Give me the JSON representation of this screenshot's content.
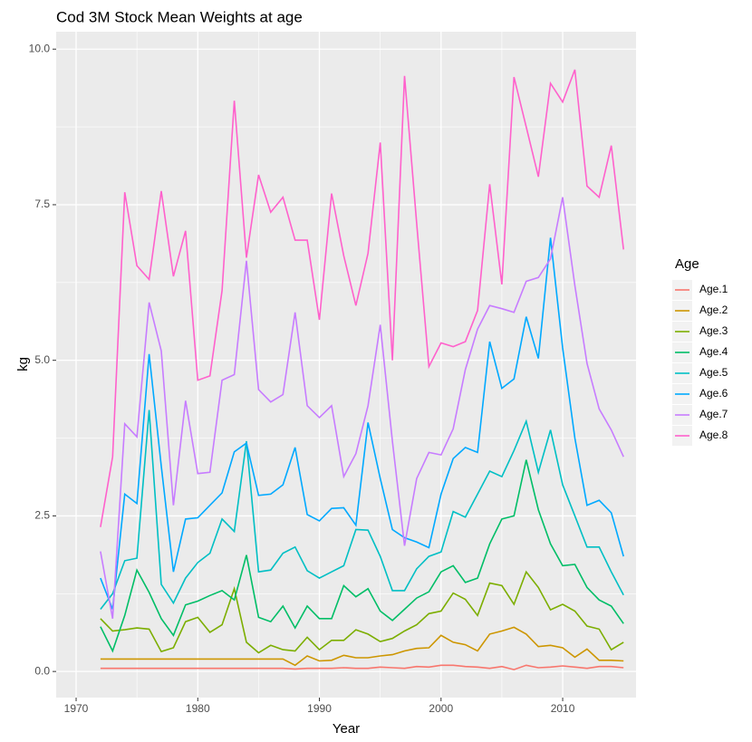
{
  "chart_data": {
    "type": "line",
    "title": "Cod 3M Stock Mean Weights at age",
    "x_label": "Year",
    "y_label": "kg",
    "legend_title": "Age",
    "legend_position": "right",
    "grid": true,
    "x": [
      1972,
      1973,
      1974,
      1975,
      1976,
      1977,
      1978,
      1979,
      1980,
      1981,
      1982,
      1983,
      1984,
      1985,
      1986,
      1987,
      1988,
      1989,
      1990,
      1991,
      1992,
      1993,
      1994,
      1995,
      1996,
      1997,
      1998,
      1999,
      2000,
      2001,
      2002,
      2003,
      2004,
      2005,
      2006,
      2007,
      2008,
      2009,
      2010,
      2011,
      2012,
      2013,
      2014,
      2015
    ],
    "xlim": [
      1968.36,
      2016.03
    ],
    "xticks": [
      1970,
      1980,
      1990,
      2000,
      2010
    ],
    "ylim": [
      -0.42,
      10.28
    ],
    "yticks": [
      {
        "value": 0,
        "label": "0.0"
      },
      2.5,
      {
        "value": 5,
        "label": "5.0"
      },
      7.5,
      {
        "value": 10,
        "label": "10.0"
      }
    ],
    "series": [
      {
        "name": "Age.1",
        "color": "#F8766D",
        "values": [
          0.05,
          0.05,
          0.05,
          0.05,
          0.05,
          0.05,
          0.05,
          0.05,
          0.05,
          0.05,
          0.05,
          0.05,
          0.05,
          0.05,
          0.05,
          0.05,
          0.04,
          0.05,
          0.05,
          0.05,
          0.06,
          0.05,
          0.05,
          0.07,
          0.06,
          0.05,
          0.08,
          0.07,
          0.1,
          0.1,
          0.08,
          0.07,
          0.05,
          0.08,
          0.03,
          0.1,
          0.06,
          0.07,
          0.09,
          0.07,
          0.05,
          0.08,
          0.08,
          0.06
        ]
      },
      {
        "name": "Age.2",
        "color": "#CD9600",
        "values": [
          0.2,
          0.2,
          0.2,
          0.2,
          0.2,
          0.2,
          0.2,
          0.2,
          0.2,
          0.2,
          0.2,
          0.2,
          0.2,
          0.2,
          0.2,
          0.2,
          0.1,
          0.25,
          0.17,
          0.18,
          0.26,
          0.22,
          0.22,
          0.25,
          0.27,
          0.33,
          0.37,
          0.38,
          0.58,
          0.47,
          0.43,
          0.33,
          0.6,
          0.65,
          0.71,
          0.6,
          0.4,
          0.42,
          0.38,
          0.23,
          0.36,
          0.18,
          0.18,
          0.17
        ]
      },
      {
        "name": "Age.3",
        "color": "#7CAE00",
        "values": [
          0.85,
          0.65,
          0.67,
          0.7,
          0.68,
          0.32,
          0.38,
          0.8,
          0.87,
          0.63,
          0.75,
          1.33,
          0.47,
          0.3,
          0.42,
          0.35,
          0.33,
          0.55,
          0.35,
          0.5,
          0.5,
          0.67,
          0.6,
          0.48,
          0.53,
          0.65,
          0.75,
          0.93,
          0.97,
          1.26,
          1.16,
          0.9,
          1.42,
          1.38,
          1.08,
          1.6,
          1.35,
          0.99,
          1.08,
          0.97,
          0.73,
          0.68,
          0.35,
          0.47
        ]
      },
      {
        "name": "Age.4",
        "color": "#00BE67",
        "values": [
          0.72,
          0.33,
          0.9,
          1.63,
          1.27,
          0.85,
          0.58,
          1.07,
          1.13,
          1.22,
          1.3,
          1.15,
          1.87,
          0.87,
          0.8,
          1.05,
          0.7,
          1.05,
          0.85,
          0.85,
          1.38,
          1.2,
          1.33,
          0.97,
          0.82,
          1.0,
          1.18,
          1.28,
          1.6,
          1.7,
          1.43,
          1.5,
          2.05,
          2.45,
          2.5,
          3.4,
          2.6,
          2.05,
          1.7,
          1.72,
          1.35,
          1.15,
          1.05,
          0.77
        ]
      },
      {
        "name": "Age.5",
        "color": "#00BFC4",
        "values": [
          1.0,
          1.25,
          1.78,
          1.82,
          4.2,
          1.4,
          1.1,
          1.5,
          1.75,
          1.9,
          2.45,
          2.25,
          3.7,
          1.6,
          1.63,
          1.9,
          2.0,
          1.62,
          1.5,
          1.6,
          1.7,
          2.28,
          2.27,
          1.85,
          1.3,
          1.3,
          1.65,
          1.85,
          1.92,
          2.57,
          2.48,
          2.85,
          3.22,
          3.13,
          3.55,
          4.02,
          3.2,
          3.88,
          3.0,
          2.5,
          2.0,
          2.0,
          1.6,
          1.23
        ]
      },
      {
        "name": "Age.6",
        "color": "#00A9FF",
        "values": [
          1.5,
          1.0,
          2.85,
          2.7,
          5.1,
          3.3,
          1.6,
          2.45,
          2.47,
          2.67,
          2.87,
          3.53,
          3.67,
          2.83,
          2.85,
          3.0,
          3.6,
          2.52,
          2.42,
          2.62,
          2.63,
          2.35,
          4.0,
          3.1,
          2.28,
          2.15,
          2.08,
          1.99,
          2.85,
          3.42,
          3.6,
          3.52,
          5.3,
          4.55,
          4.7,
          5.7,
          5.03,
          6.97,
          5.2,
          3.75,
          2.67,
          2.75,
          2.55,
          1.85
        ]
      },
      {
        "name": "Age.7",
        "color": "#C77CFF",
        "values": [
          1.93,
          0.85,
          3.98,
          3.77,
          5.93,
          5.15,
          2.67,
          4.35,
          3.18,
          3.2,
          4.68,
          4.77,
          6.6,
          4.53,
          4.33,
          4.45,
          5.77,
          4.27,
          4.08,
          4.27,
          3.13,
          3.5,
          4.27,
          5.57,
          3.7,
          2.02,
          3.1,
          3.52,
          3.48,
          3.9,
          4.85,
          5.5,
          5.88,
          5.83,
          5.77,
          6.27,
          6.33,
          6.63,
          7.62,
          6.2,
          4.95,
          4.22,
          3.88,
          3.45
        ]
      },
      {
        "name": "Age.8",
        "color": "#FF61CC",
        "values": [
          2.32,
          3.45,
          7.7,
          6.52,
          6.3,
          7.72,
          6.35,
          7.08,
          4.68,
          4.75,
          6.12,
          9.17,
          6.65,
          7.98,
          7.38,
          7.62,
          6.93,
          6.93,
          5.65,
          7.68,
          6.68,
          5.88,
          6.72,
          8.5,
          5.0,
          9.57,
          7.2,
          4.9,
          5.28,
          5.22,
          5.3,
          5.8,
          7.83,
          6.22,
          9.55,
          8.75,
          7.95,
          9.45,
          9.15,
          9.67,
          7.8,
          7.62,
          8.45,
          6.78
        ]
      }
    ]
  }
}
